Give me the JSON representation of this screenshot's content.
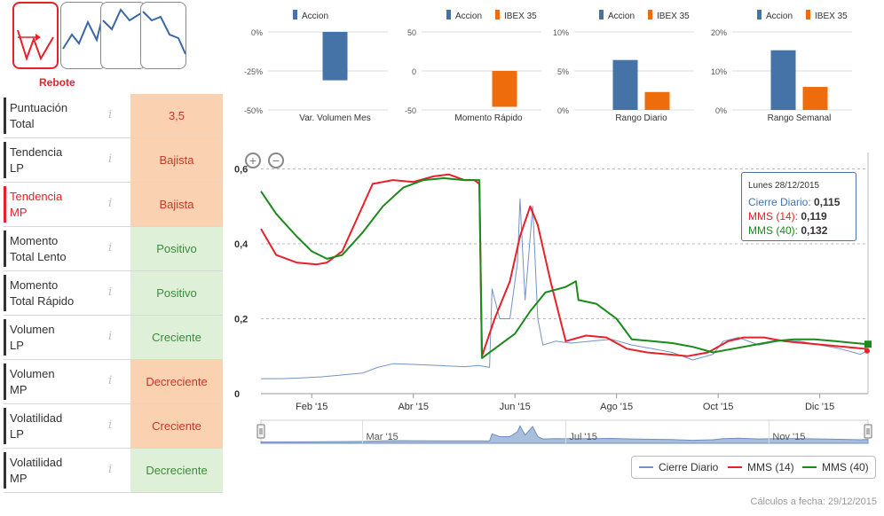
{
  "pattern": {
    "label": "Rebote"
  },
  "indicators": [
    {
      "label_line1": "Puntuación",
      "label_line2": "Total",
      "value": "3,5",
      "tone": "neg",
      "highlight": false
    },
    {
      "label_line1": "Tendencia",
      "label_line2": "LP",
      "value": "Bajista",
      "tone": "neg",
      "highlight": false
    },
    {
      "label_line1": "Tendencia",
      "label_line2": "MP",
      "value": "Bajista",
      "tone": "neg",
      "highlight": true
    },
    {
      "label_line1": "Momento",
      "label_line2": "Total Lento",
      "value": "Positivo",
      "tone": "pos",
      "highlight": false
    },
    {
      "label_line1": "Momento",
      "label_line2": "Total Rápido",
      "value": "Positivo",
      "tone": "pos",
      "highlight": false
    },
    {
      "label_line1": "Volumen",
      "label_line2": "LP",
      "value": "Creciente",
      "tone": "pos",
      "highlight": false
    },
    {
      "label_line1": "Volumen",
      "label_line2": "MP",
      "value": "Decreciente",
      "tone": "neg",
      "highlight": false
    },
    {
      "label_line1": "Volatilidad",
      "label_line2": "LP",
      "value": "Creciente",
      "tone": "neg",
      "highlight": false
    },
    {
      "label_line1": "Volatilidad",
      "label_line2": "MP",
      "value": "Decreciente",
      "tone": "pos",
      "highlight": false
    }
  ],
  "info_glyph": "i",
  "colors": {
    "accion": "#4572a7",
    "ibex": "#ee6c0b",
    "cierre": "#7393c4",
    "mms14": "#e8202a",
    "mms40": "#1a8a1a"
  },
  "chart_data": [
    {
      "type": "bar",
      "title": "Var. Volumen Mes",
      "series": [
        {
          "name": "Accion",
          "values": [
            -31
          ]
        }
      ],
      "ylim": [
        -50,
        0
      ],
      "ticks": [
        0,
        -25,
        -50
      ],
      "tick_labels": [
        "0%",
        "-25%",
        "-50%"
      ]
    },
    {
      "type": "bar",
      "title": "Momento Rápido",
      "series": [
        {
          "name": "Accion",
          "values": [
            0
          ]
        },
        {
          "name": "IBEX 35",
          "values": [
            -46
          ]
        }
      ],
      "ylim": [
        -50,
        50
      ],
      "ticks": [
        50,
        0,
        -50
      ],
      "tick_labels": [
        "50",
        "0",
        "-50"
      ]
    },
    {
      "type": "bar",
      "title": "Rango Diario",
      "series": [
        {
          "name": "Accion",
          "values": [
            6.4
          ]
        },
        {
          "name": "IBEX 35",
          "values": [
            2.3
          ]
        }
      ],
      "ylim": [
        0,
        10
      ],
      "ticks": [
        10,
        5,
        0
      ],
      "tick_labels": [
        "10%",
        "5%",
        "0%"
      ]
    },
    {
      "type": "bar",
      "title": "Rango Semanal",
      "series": [
        {
          "name": "Accion",
          "values": [
            15.3
          ]
        },
        {
          "name": "IBEX 35",
          "values": [
            5.9
          ]
        }
      ],
      "ylim": [
        0,
        20
      ],
      "ticks": [
        20,
        10,
        0
      ],
      "tick_labels": [
        "20%",
        "10%",
        "0%"
      ]
    },
    {
      "type": "line",
      "title": "",
      "x_tick_labels": [
        "Feb '15",
        "Abr '15",
        "Jun '15",
        "Ago '15",
        "Oct '15",
        "Dic '15"
      ],
      "x_ticks_month_index": [
        1,
        3,
        5,
        7,
        9,
        11
      ],
      "y_tick_labels": [
        "0",
        "0,2",
        "0,4",
        "0,6"
      ],
      "y_ticks": [
        0,
        0.2,
        0.4,
        0.6
      ],
      "ylim": [
        0,
        0.62
      ],
      "xlim_months": [
        0,
        11.95
      ],
      "series": [
        {
          "name": "Cierre Diario",
          "points": [
            [
              0,
              0.04
            ],
            [
              0.4,
              0.04
            ],
            [
              0.8,
              0.042
            ],
            [
              1.2,
              0.045
            ],
            [
              1.6,
              0.05
            ],
            [
              2.0,
              0.055
            ],
            [
              2.3,
              0.07
            ],
            [
              2.6,
              0.08
            ],
            [
              3.0,
              0.078
            ],
            [
              3.5,
              0.075
            ],
            [
              4.0,
              0.072
            ],
            [
              4.3,
              0.075
            ],
            [
              4.5,
              0.07
            ],
            [
              4.55,
              0.28
            ],
            [
              4.7,
              0.2
            ],
            [
              4.9,
              0.2
            ],
            [
              5.05,
              0.35
            ],
            [
              5.1,
              0.52
            ],
            [
              5.2,
              0.25
            ],
            [
              5.35,
              0.5
            ],
            [
              5.45,
              0.2
            ],
            [
              5.55,
              0.13
            ],
            [
              5.8,
              0.14
            ],
            [
              6.1,
              0.135
            ],
            [
              6.5,
              0.14
            ],
            [
              6.9,
              0.145
            ],
            [
              7.3,
              0.13
            ],
            [
              7.7,
              0.12
            ],
            [
              8.1,
              0.11
            ],
            [
              8.5,
              0.09
            ],
            [
              8.9,
              0.105
            ],
            [
              9.1,
              0.14
            ],
            [
              9.4,
              0.15
            ],
            [
              9.8,
              0.13
            ],
            [
              10.2,
              0.14
            ],
            [
              10.6,
              0.14
            ],
            [
              11.0,
              0.13
            ],
            [
              11.4,
              0.12
            ],
            [
              11.8,
              0.105
            ],
            [
              11.95,
              0.115
            ]
          ]
        },
        {
          "name": "MMS (14)",
          "points": [
            [
              0,
              0.44
            ],
            [
              0.3,
              0.37
            ],
            [
              0.7,
              0.35
            ],
            [
              1.1,
              0.345
            ],
            [
              1.3,
              0.35
            ],
            [
              1.6,
              0.38
            ],
            [
              1.9,
              0.47
            ],
            [
              2.2,
              0.56
            ],
            [
              2.6,
              0.57
            ],
            [
              3.0,
              0.565
            ],
            [
              3.4,
              0.58
            ],
            [
              3.7,
              0.585
            ],
            [
              4.0,
              0.57
            ],
            [
              4.2,
              0.57
            ],
            [
              4.3,
              0.56
            ],
            [
              4.35,
              0.1
            ],
            [
              4.6,
              0.2
            ],
            [
              4.9,
              0.3
            ],
            [
              5.1,
              0.42
            ],
            [
              5.3,
              0.5
            ],
            [
              5.45,
              0.45
            ],
            [
              5.7,
              0.3
            ],
            [
              6.0,
              0.14
            ],
            [
              6.4,
              0.155
            ],
            [
              6.8,
              0.15
            ],
            [
              7.2,
              0.12
            ],
            [
              7.6,
              0.11
            ],
            [
              8.0,
              0.105
            ],
            [
              8.4,
              0.1
            ],
            [
              8.8,
              0.11
            ],
            [
              9.2,
              0.14
            ],
            [
              9.5,
              0.15
            ],
            [
              9.9,
              0.15
            ],
            [
              10.3,
              0.14
            ],
            [
              10.7,
              0.135
            ],
            [
              11.1,
              0.13
            ],
            [
              11.5,
              0.125
            ],
            [
              11.95,
              0.119
            ]
          ]
        },
        {
          "name": "MMS (40)",
          "points": [
            [
              0,
              0.54
            ],
            [
              0.3,
              0.48
            ],
            [
              0.7,
              0.42
            ],
            [
              1.0,
              0.38
            ],
            [
              1.3,
              0.36
            ],
            [
              1.6,
              0.37
            ],
            [
              2.0,
              0.43
            ],
            [
              2.4,
              0.5
            ],
            [
              2.8,
              0.55
            ],
            [
              3.2,
              0.57
            ],
            [
              3.6,
              0.575
            ],
            [
              4.0,
              0.57
            ],
            [
              4.3,
              0.57
            ],
            [
              4.35,
              0.095
            ],
            [
              4.7,
              0.13
            ],
            [
              5.0,
              0.16
            ],
            [
              5.3,
              0.22
            ],
            [
              5.6,
              0.27
            ],
            [
              6.0,
              0.285
            ],
            [
              6.2,
              0.3
            ],
            [
              6.25,
              0.25
            ],
            [
              6.6,
              0.24
            ],
            [
              7.0,
              0.2
            ],
            [
              7.3,
              0.145
            ],
            [
              7.7,
              0.14
            ],
            [
              8.1,
              0.135
            ],
            [
              8.5,
              0.125
            ],
            [
              8.9,
              0.11
            ],
            [
              9.3,
              0.12
            ],
            [
              9.7,
              0.13
            ],
            [
              10.1,
              0.14
            ],
            [
              10.5,
              0.145
            ],
            [
              10.9,
              0.145
            ],
            [
              11.3,
              0.14
            ],
            [
              11.7,
              0.135
            ],
            [
              11.95,
              0.132
            ]
          ]
        }
      ]
    }
  ],
  "navigator": {
    "labels": [
      "Mar '15",
      "Jul '15",
      "Nov '15"
    ]
  },
  "legend": [
    {
      "name": "Cierre Diario"
    },
    {
      "name": "MMS (14)"
    },
    {
      "name": "MMS (40)"
    }
  ],
  "tooltip": {
    "date": "Lunes 28/12/2015",
    "rows": [
      {
        "label": "Cierre Diario:",
        "value": "0,115"
      },
      {
        "label": "MMS (14):",
        "value": "0,119"
      },
      {
        "label": "MMS (40):",
        "value": "0,132"
      }
    ]
  },
  "zoom": {
    "in_glyph": "+",
    "out_glyph": "−"
  },
  "footer": "Cálculos a fecha: 29/12/2015"
}
